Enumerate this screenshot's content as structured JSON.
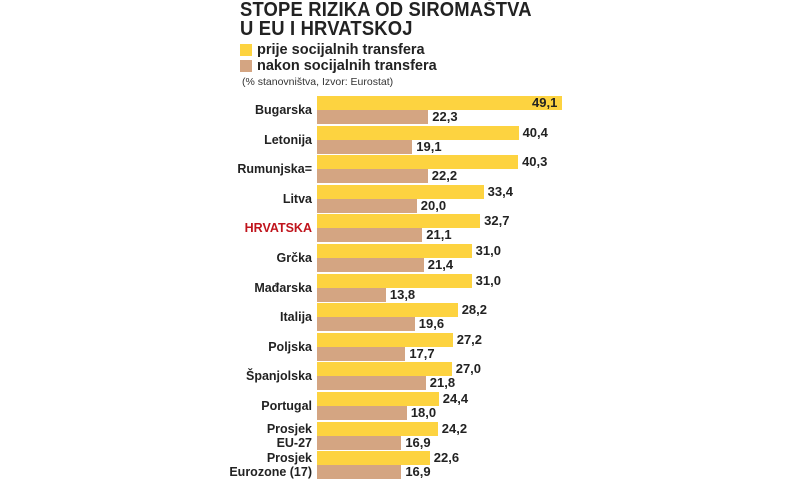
{
  "chart_data": {
    "type": "bar",
    "orientation": "horizontal",
    "title": "STOPE RIZIKA OD SIROMAŠTVA U EU I HRVATSKOJ",
    "title_lines": [
      "STOPE RIZIKA OD SIROMAŠTVA",
      "U EU I HRVATSKOJ"
    ],
    "note": "(% stanovništva, Izvor: Eurostat)",
    "legend_placement": "top-left",
    "grid": false,
    "xlim": [
      0,
      50
    ],
    "categories": [
      "Bugarska",
      "Letonija",
      "Rumunjska=",
      "Litva",
      "HRVATSKA",
      "Grčka",
      "Mađarska",
      "Italija",
      "Poljska",
      "Španjolska",
      "Portugal",
      "Prosjek EU-27",
      "Prosjek Eurozone (17)"
    ],
    "category_lines": [
      [
        "Bugarska"
      ],
      [
        "Letonija"
      ],
      [
        "Rumunjska="
      ],
      [
        "Litva"
      ],
      [
        "HRVATSKA"
      ],
      [
        "Grčka"
      ],
      [
        "Mađarska"
      ],
      [
        "Italija"
      ],
      [
        "Poljska"
      ],
      [
        "Španjolska"
      ],
      [
        "Portugal"
      ],
      [
        "Prosjek",
        "EU-27"
      ],
      [
        "Prosjek",
        "Eurozone (17)"
      ]
    ],
    "highlight_category": "HRVATSKA",
    "highlight_color": "#c0141c",
    "series": [
      {
        "name": "prije socijalnih transfera",
        "color": "#fdd340",
        "values": [
          49.1,
          40.4,
          40.3,
          33.4,
          32.7,
          31.0,
          31.0,
          28.2,
          27.2,
          27.0,
          24.4,
          24.2,
          22.6
        ],
        "labels": [
          "49,1",
          "40,4",
          "40,3",
          "33,4",
          "32,7",
          "31,0",
          "31,0",
          "28,2",
          "27,2",
          "27,0",
          "24,4",
          "24,2",
          "22,6"
        ]
      },
      {
        "name": "nakon socijalnih transfera",
        "color": "#d4a582",
        "values": [
          22.3,
          19.1,
          22.2,
          20.0,
          21.1,
          21.4,
          13.8,
          19.6,
          17.7,
          21.8,
          18.0,
          16.9,
          16.9
        ],
        "labels": [
          "22,3",
          "19,1",
          "22,2",
          "20,0",
          "21,1",
          "21,4",
          "13,8",
          "19,6",
          "17,7",
          "21,8",
          "18,0",
          "16,9",
          "16,9"
        ]
      }
    ]
  }
}
